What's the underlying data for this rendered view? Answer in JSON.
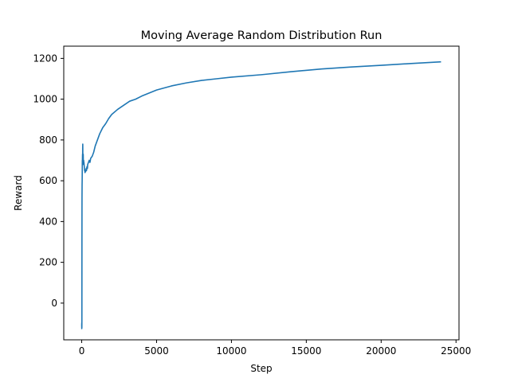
{
  "chart_data": {
    "type": "line",
    "title": "Moving Average Random Distribution Run",
    "xlabel": "Step",
    "ylabel": "Reward",
    "xlim": [
      -1200,
      25200
    ],
    "ylim": [
      -180,
      1260
    ],
    "x_ticks": [
      0,
      5000,
      10000,
      15000,
      20000,
      25000
    ],
    "x_tick_labels": [
      "0",
      "5000",
      "10000",
      "15000",
      "20000",
      "25000"
    ],
    "y_ticks": [
      0,
      200,
      400,
      600,
      800,
      1000,
      1200
    ],
    "y_tick_labels": [
      "0",
      "200",
      "400",
      "600",
      "800",
      "1000",
      "1200"
    ],
    "grid": false,
    "legend": "none",
    "series": [
      {
        "color": "#1f77b4",
        "x": [
          0,
          2,
          4,
          6,
          8,
          10,
          12,
          15,
          18,
          20,
          25,
          30,
          35,
          40,
          45,
          50,
          55,
          60,
          65,
          70,
          75,
          80,
          90,
          100,
          110,
          120,
          130,
          140,
          150,
          160,
          170,
          180,
          190,
          200,
          220,
          240,
          260,
          280,
          300,
          320,
          340,
          360,
          380,
          400,
          450,
          500,
          550,
          600,
          650,
          700,
          800,
          900,
          1000,
          1200,
          1400,
          1600,
          1800,
          2000,
          2400,
          2800,
          3200,
          3600,
          4000,
          5000,
          6000,
          7000,
          8000,
          9000,
          10000,
          12000,
          14000,
          16000,
          18000,
          20000,
          22000,
          24000
        ],
        "values": [
          -115,
          -100,
          -125,
          -95,
          -110,
          -120,
          -80,
          300,
          450,
          520,
          580,
          600,
          640,
          700,
          690,
          710,
          730,
          690,
          760,
          780,
          735,
          700,
          720,
          730,
          680,
          700,
          700,
          690,
          690,
          680,
          670,
          660,
          650,
          655,
          640,
          650,
          645,
          650,
          660,
          650,
          665,
          670,
          660,
          680,
          690,
          700,
          690,
          710,
          715,
          720,
          740,
          770,
          790,
          830,
          860,
          880,
          905,
          925,
          950,
          970,
          990,
          1000,
          1015,
          1045,
          1065,
          1080,
          1092,
          1100,
          1108,
          1120,
          1135,
          1148,
          1158,
          1166,
          1175,
          1183
        ]
      }
    ]
  }
}
